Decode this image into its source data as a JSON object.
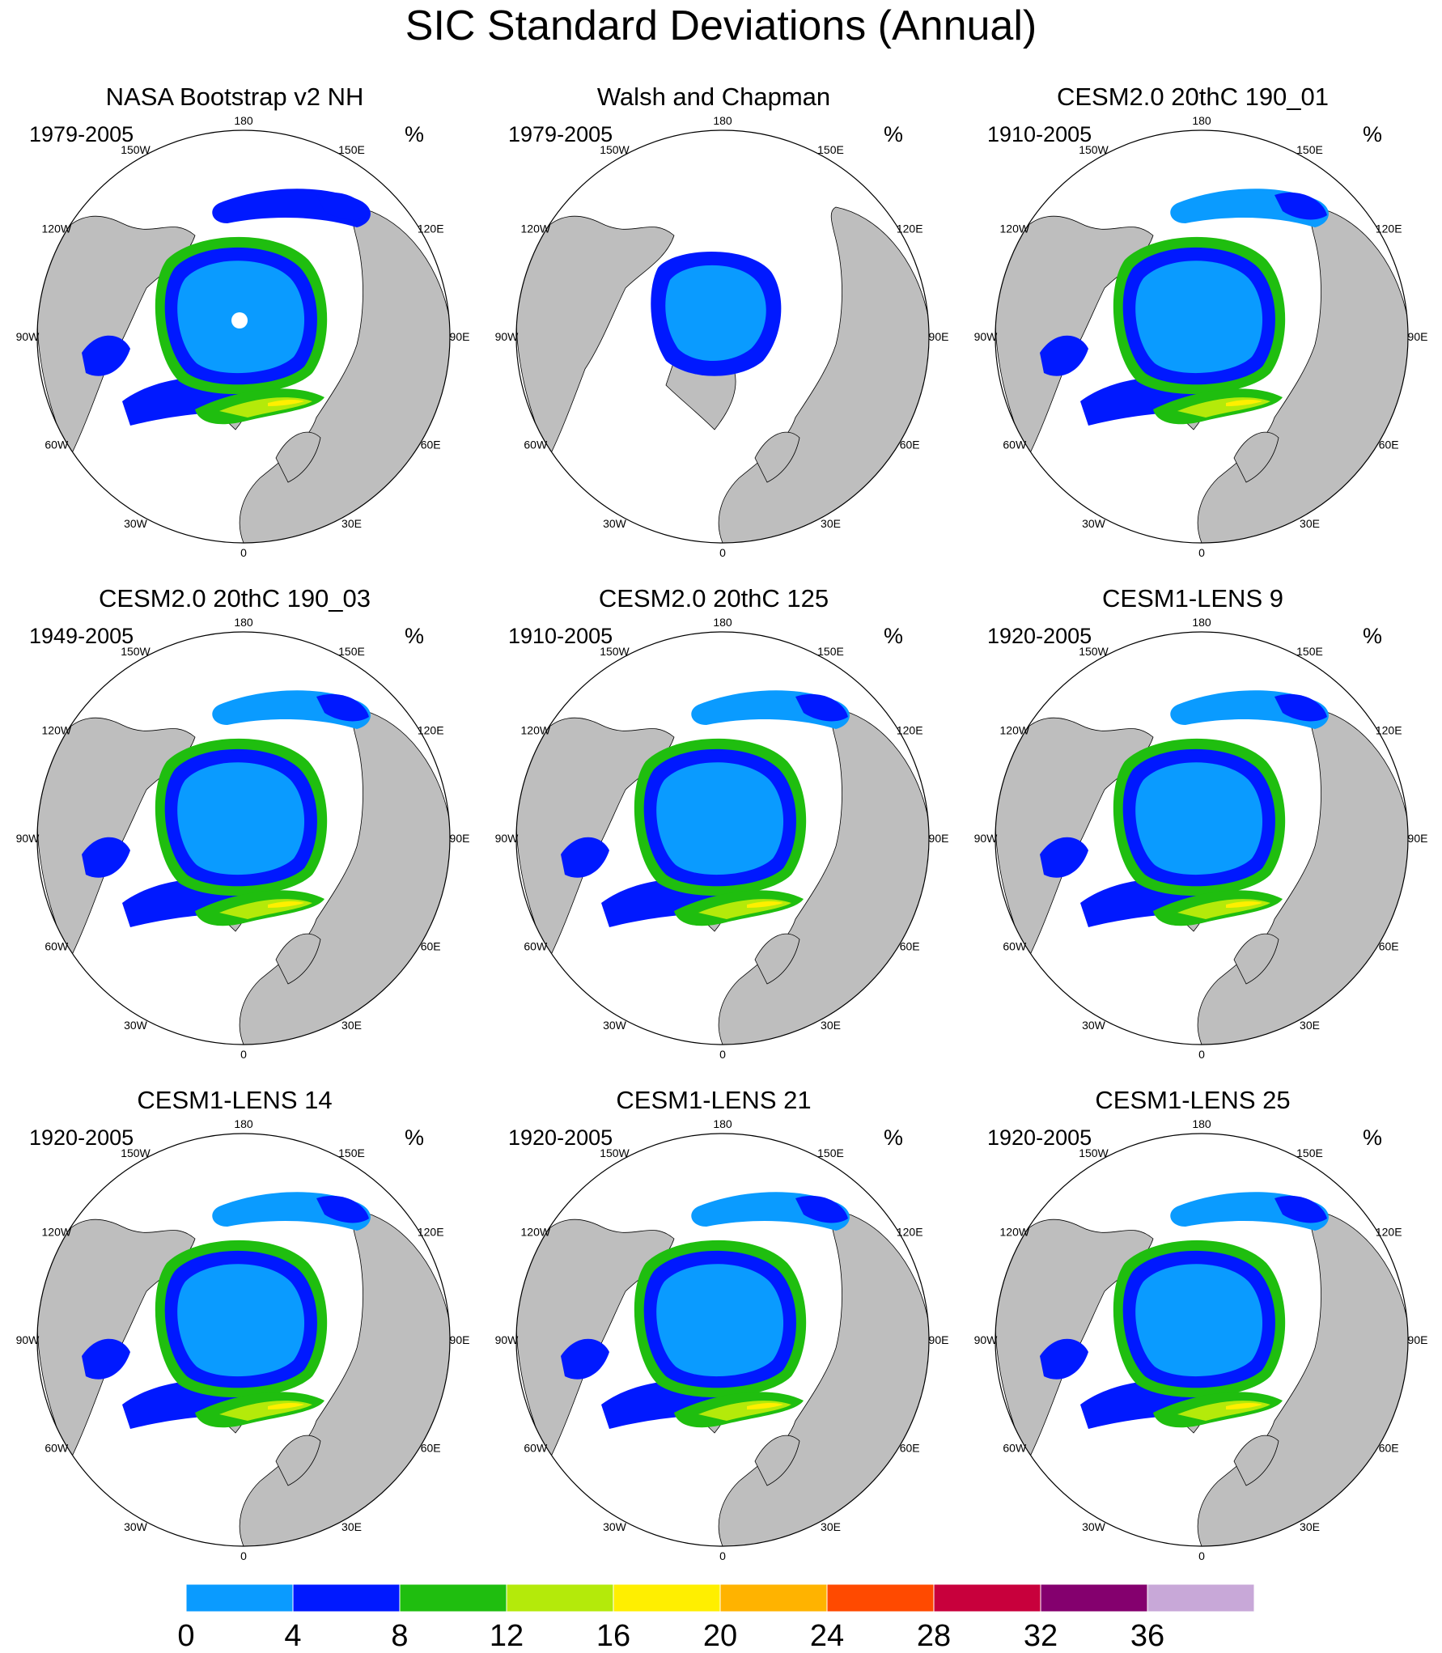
{
  "title": "SIC Standard Deviations (Annual)",
  "chart_data": [
    {
      "type": "heatmap",
      "title": "NASA Bootstrap v2 NH",
      "period": "1979-2005",
      "unit": "%",
      "lon_labels": [
        "180",
        "150E",
        "120E",
        "90E",
        "60E",
        "30E",
        "0",
        "30W",
        "60W",
        "90W",
        "120W",
        "150W"
      ],
      "style": "obs"
    },
    {
      "type": "heatmap",
      "title": "Walsh and Chapman",
      "period": "1979-2005",
      "unit": "%",
      "lon_labels": [
        "180",
        "150E",
        "120E",
        "90E",
        "60E",
        "30E",
        "0",
        "30W",
        "60W",
        "90W",
        "120W",
        "150W"
      ],
      "style": "walsh"
    },
    {
      "type": "heatmap",
      "title": "CESM2.0 20thC 190_01",
      "period": "1910-2005",
      "unit": "%",
      "lon_labels": [
        "180",
        "150E",
        "120E",
        "90E",
        "60E",
        "30E",
        "0",
        "30W",
        "60W",
        "90W",
        "120W",
        "150W"
      ],
      "style": "model"
    },
    {
      "type": "heatmap",
      "title": "CESM2.0 20thC 190_03",
      "period": "1949-2005",
      "unit": "%",
      "lon_labels": [
        "180",
        "150E",
        "120E",
        "90E",
        "60E",
        "30E",
        "0",
        "30W",
        "60W",
        "90W",
        "120W",
        "150W"
      ],
      "style": "model"
    },
    {
      "type": "heatmap",
      "title": "CESM2.0 20thC 125",
      "period": "1910-2005",
      "unit": "%",
      "lon_labels": [
        "180",
        "150E",
        "120E",
        "90E",
        "60E",
        "30E",
        "0",
        "30W",
        "60W",
        "90W",
        "120W",
        "150W"
      ],
      "style": "model"
    },
    {
      "type": "heatmap",
      "title": "CESM1-LENS 9",
      "period": "1920-2005",
      "unit": "%",
      "lon_labels": [
        "180",
        "150E",
        "120E",
        "90E",
        "60E",
        "30E",
        "0",
        "30W",
        "60W",
        "90W",
        "120W",
        "150W"
      ],
      "style": "model"
    },
    {
      "type": "heatmap",
      "title": "CESM1-LENS 14",
      "period": "1920-2005",
      "unit": "%",
      "lon_labels": [
        "180",
        "150E",
        "120E",
        "90E",
        "60E",
        "30E",
        "0",
        "30W",
        "60W",
        "90W",
        "120W",
        "150W"
      ],
      "style": "model"
    },
    {
      "type": "heatmap",
      "title": "CESM1-LENS 21",
      "period": "1920-2005",
      "unit": "%",
      "lon_labels": [
        "180",
        "150E",
        "120E",
        "90E",
        "60E",
        "30E",
        "0",
        "30W",
        "60W",
        "90W",
        "120W",
        "150W"
      ],
      "style": "model"
    },
    {
      "type": "heatmap",
      "title": "CESM1-LENS 25",
      "period": "1920-2005",
      "unit": "%",
      "lon_labels": [
        "180",
        "150E",
        "120E",
        "90E",
        "60E",
        "30E",
        "0",
        "30W",
        "60W",
        "90W",
        "120W",
        "150W"
      ],
      "style": "model"
    }
  ],
  "colorbar": {
    "labels": [
      "0",
      "4",
      "8",
      "12",
      "16",
      "20",
      "24",
      "28",
      "32",
      "36"
    ],
    "colors": [
      "#0a9bff",
      "#0019ff",
      "#1fbe0f",
      "#b4ea0a",
      "#ffef00",
      "#ffb300",
      "#ff4a00",
      "#c8003c",
      "#84006e",
      "#c8a8d8"
    ]
  },
  "colors": {
    "land": "#bebebe",
    "ocean": "#ffffff",
    "outline": "#000000"
  }
}
